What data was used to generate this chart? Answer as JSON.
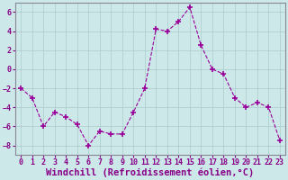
{
  "x": [
    0,
    1,
    2,
    3,
    4,
    5,
    6,
    7,
    8,
    9,
    10,
    11,
    12,
    13,
    14,
    15,
    16,
    17,
    18,
    19,
    20,
    21,
    22,
    23
  ],
  "y": [
    -2.0,
    -3.0,
    -6.0,
    -4.5,
    -5.0,
    -5.8,
    -8.0,
    -6.5,
    -6.8,
    -6.8,
    -4.5,
    -2.0,
    4.2,
    4.0,
    5.0,
    6.5,
    2.5,
    0.0,
    -0.5,
    -3.0,
    -4.0,
    -3.5,
    -4.0,
    -7.5
  ],
  "line_color": "#990099",
  "marker": "+",
  "marker_size": 4,
  "bg_color": "#cce8e8",
  "grid_color": "#aacccc",
  "xlabel": "Windchill (Refroidissement éolien,°C)",
  "ylim": [
    -9,
    7
  ],
  "xlim": [
    -0.5,
    23.5
  ],
  "yticks": [
    -8,
    -6,
    -4,
    -2,
    0,
    2,
    4,
    6
  ],
  "xticks": [
    0,
    1,
    2,
    3,
    4,
    5,
    6,
    7,
    8,
    9,
    10,
    11,
    12,
    13,
    14,
    15,
    16,
    17,
    18,
    19,
    20,
    21,
    22,
    23
  ],
  "tick_color": "#880088",
  "label_color": "#880088",
  "tick_fontsize": 6.0,
  "xlabel_fontsize": 7.5
}
